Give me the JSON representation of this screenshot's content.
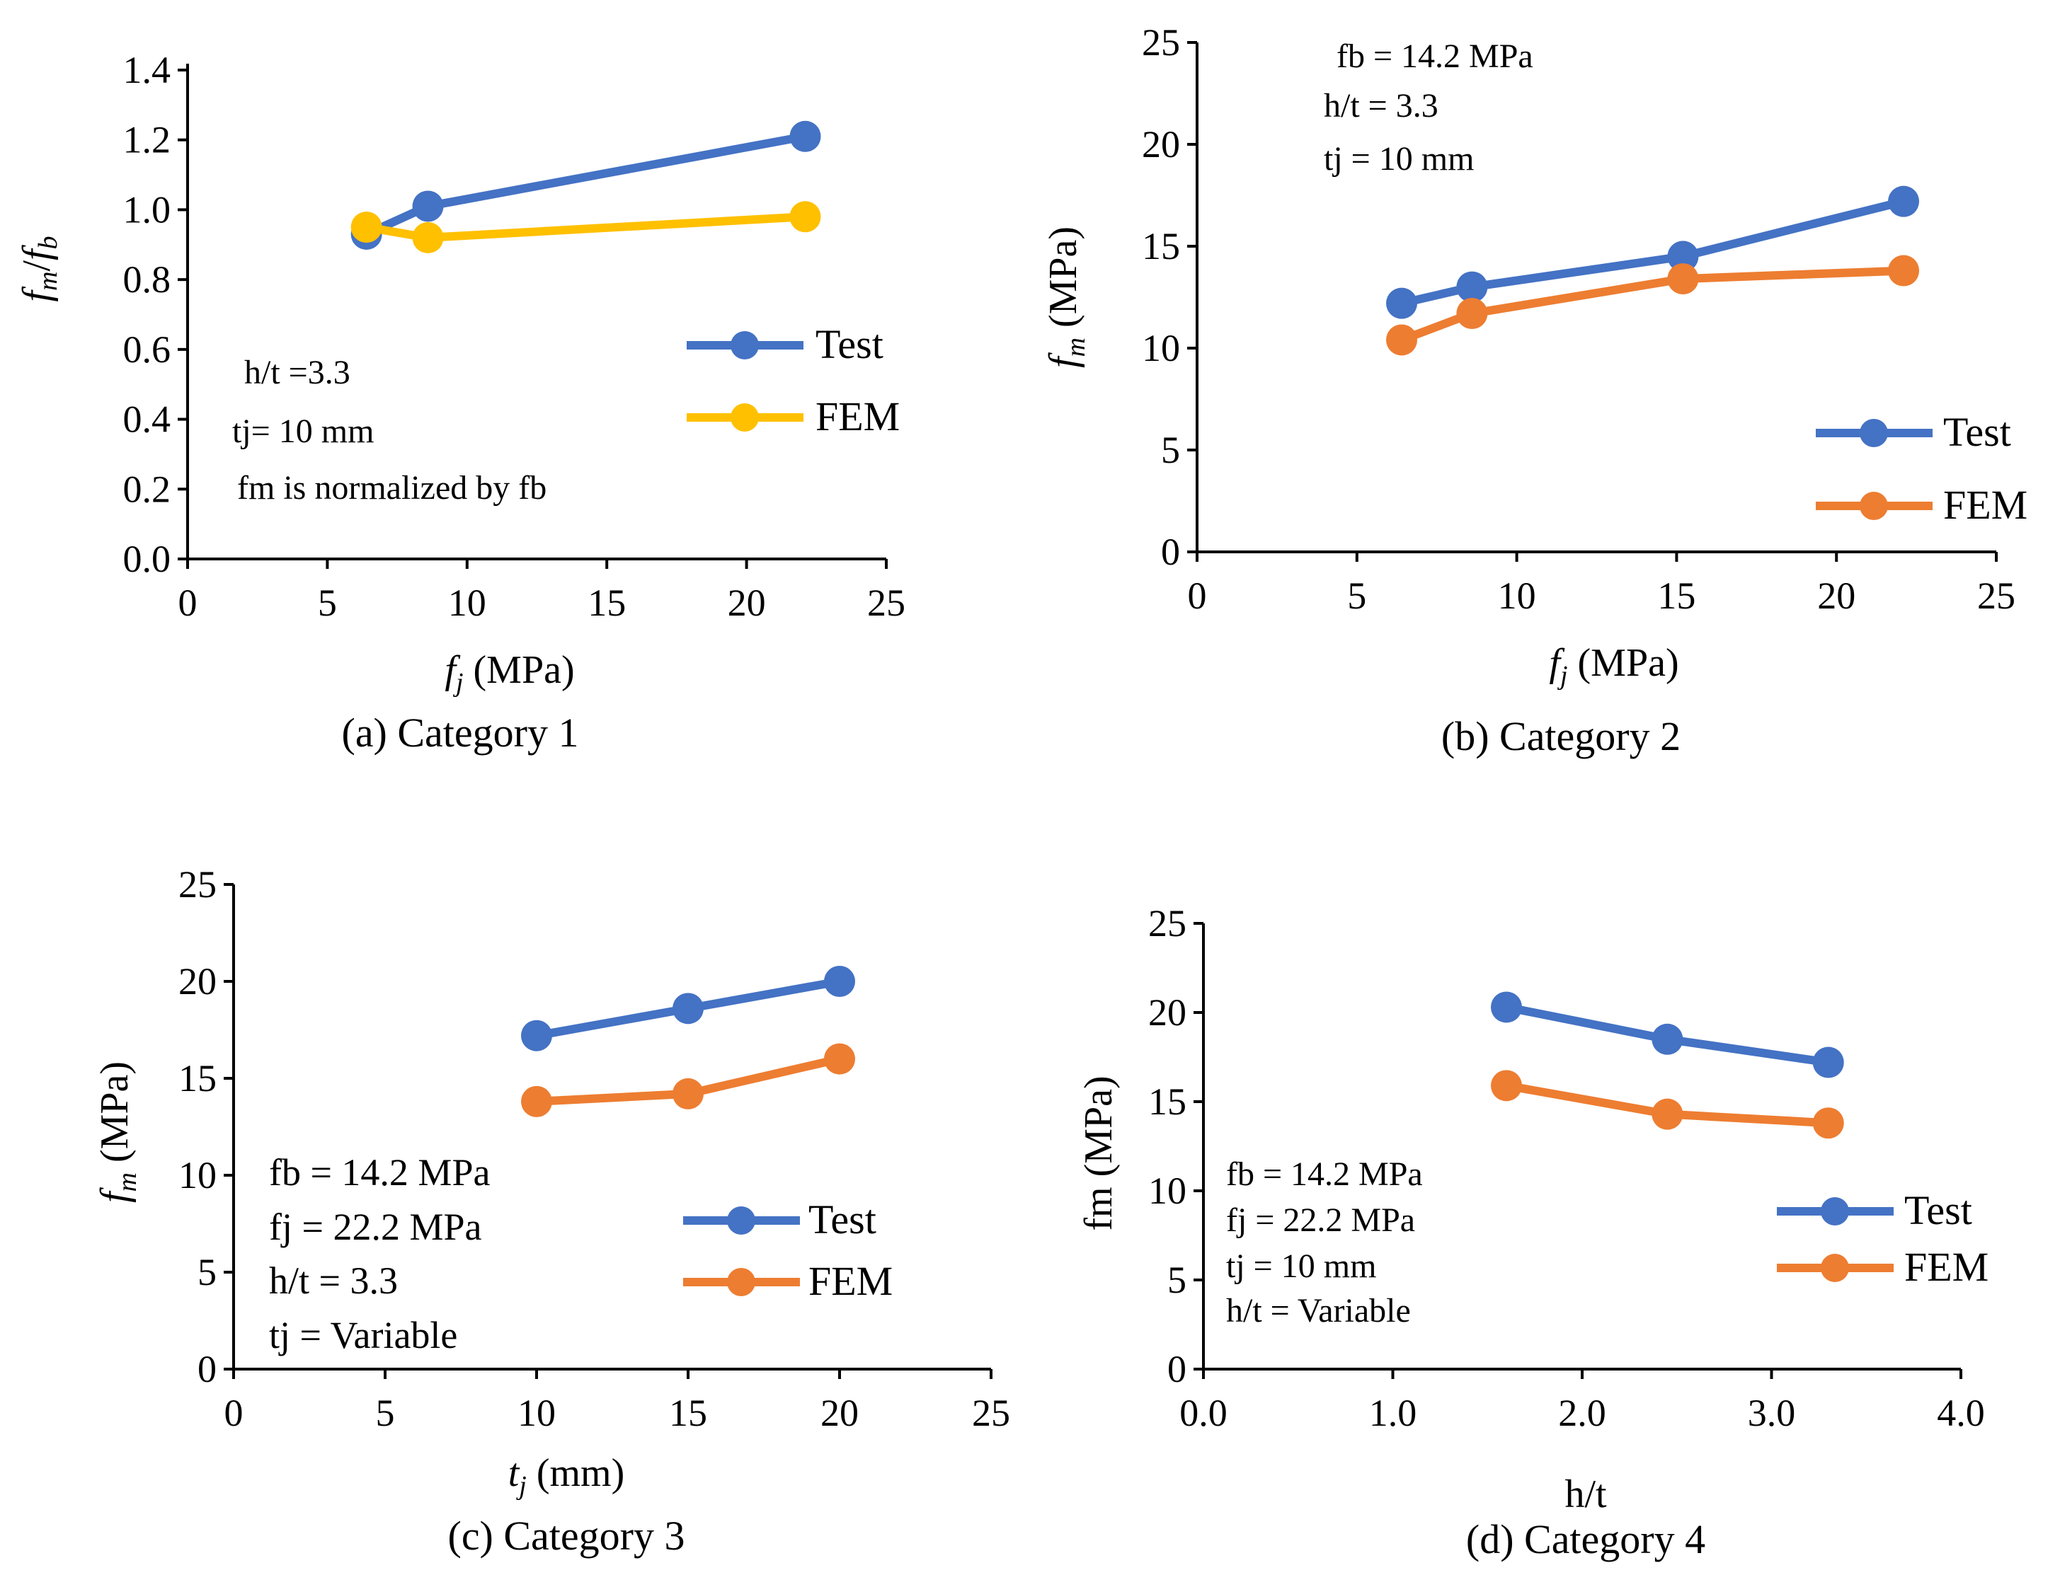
{
  "colors": {
    "test": "#4472C4",
    "fem_cat1": "#FFC000",
    "fem": "#ED7D31",
    "axis": "#000000"
  },
  "chart_data": [
    {
      "type": "line",
      "caption": "(a) Category 1",
      "xlabel": {
        "main": "f",
        "sub": "j",
        "rest": " (MPa)"
      },
      "ylabel": {
        "main1": "f",
        "sub1": "m",
        "mid": "/",
        "main2": "f",
        "sub2": "b"
      },
      "xlim": [
        0,
        25
      ],
      "ylim": [
        0,
        1.4
      ],
      "xticks": [
        "0",
        "5",
        "10",
        "15",
        "20",
        "25"
      ],
      "yticks": [
        "0.0",
        "0.2",
        "0.4",
        "0.6",
        "0.8",
        "1.0",
        "1.2",
        "1.4"
      ],
      "series": [
        {
          "name": "Test",
          "x": [
            6.4,
            8.6,
            22.1
          ],
          "y": [
            0.93,
            1.01,
            1.21
          ]
        },
        {
          "name": "FEM",
          "x": [
            6.4,
            8.6,
            22.1
          ],
          "y": [
            0.95,
            0.92,
            0.98
          ]
        }
      ],
      "notes": [
        "h/t =3.3",
        "tj= 10 mm",
        "fm is normalized by  fb"
      ],
      "legend": [
        "Test",
        "FEM"
      ]
    },
    {
      "type": "line",
      "caption": "(b) Category 2",
      "xlabel": {
        "main": "f",
        "sub": "j",
        "rest": " (MPa)"
      },
      "ylabel": {
        "main1": "f",
        "sub1": "m",
        "rest": " (MPa)"
      },
      "xlim": [
        0,
        25
      ],
      "ylim": [
        0,
        25
      ],
      "xticks": [
        "0",
        "5",
        "10",
        "15",
        "20",
        "25"
      ],
      "yticks": [
        "0",
        "5",
        "10",
        "15",
        "20",
        "25"
      ],
      "series": [
        {
          "name": "Test",
          "x": [
            6.4,
            8.6,
            15.2,
            22.1
          ],
          "y": [
            12.2,
            13.0,
            14.5,
            17.2
          ]
        },
        {
          "name": "FEM",
          "x": [
            6.4,
            8.6,
            15.2,
            22.1
          ],
          "y": [
            10.4,
            11.7,
            13.4,
            13.8
          ]
        }
      ],
      "notes": [
        "fb = 14.2 MPa",
        "h/t = 3.3",
        "tj = 10 mm"
      ],
      "legend": [
        "Test",
        "FEM"
      ]
    },
    {
      "type": "line",
      "caption": "(c) Category 3",
      "xlabel": {
        "main": "t",
        "sub": "j",
        "rest": " (mm)"
      },
      "ylabel": {
        "main1": "f",
        "sub1": "m",
        "rest": " (MPa)"
      },
      "xlim": [
        0,
        25
      ],
      "ylim": [
        0,
        25
      ],
      "xticks": [
        "0",
        "5",
        "10",
        "15",
        "20",
        "25"
      ],
      "yticks": [
        "0",
        "5",
        "10",
        "15",
        "20",
        "25"
      ],
      "series": [
        {
          "name": "Test",
          "x": [
            10,
            15,
            20
          ],
          "y": [
            17.2,
            18.6,
            20.0
          ]
        },
        {
          "name": "FEM",
          "x": [
            10,
            15,
            20
          ],
          "y": [
            13.8,
            14.2,
            16.0
          ]
        }
      ],
      "notes": [
        "fb = 14.2 MPa",
        "fj = 22.2 MPa",
        "h/t = 3.3",
        "tj = Variable"
      ],
      "legend": [
        "Test",
        "FEM"
      ]
    },
    {
      "type": "line",
      "caption": "(d) Category 4",
      "xlabel": {
        "main": "h/t"
      },
      "ylabel": {
        "main1": "fm (MPa)"
      },
      "xlim": [
        0,
        4
      ],
      "ylim": [
        0,
        25
      ],
      "xticks": [
        "0.0",
        "1.0",
        "2.0",
        "3.0",
        "4.0"
      ],
      "yticks": [
        "0",
        "5",
        "10",
        "15",
        "20",
        "25"
      ],
      "series": [
        {
          "name": "Test",
          "x": [
            1.6,
            2.45,
            3.3
          ],
          "y": [
            20.3,
            18.5,
            17.2
          ]
        },
        {
          "name": "FEM",
          "x": [
            1.6,
            2.45,
            3.3
          ],
          "y": [
            15.9,
            14.3,
            13.8
          ]
        }
      ],
      "notes": [
        "fb = 14.2 MPa",
        "fj = 22.2 MPa",
        "tj = 10 mm",
        "h/t = Variable"
      ],
      "legend": [
        "Test",
        "FEM"
      ]
    }
  ]
}
